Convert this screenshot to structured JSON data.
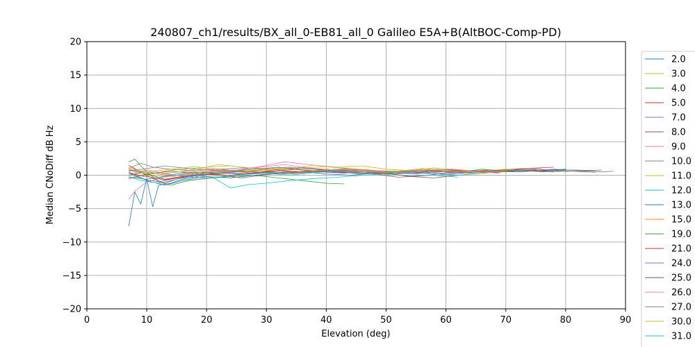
{
  "chart_data": {
    "type": "line",
    "title": "240807_ch1/results/BX_all_0-EB81_all_0 Galileo E5A+B(AltBOC-Comp-PD)",
    "xlabel": "Elevation (deg)",
    "ylabel": "Median CNoDiff dB Hz",
    "xlim": [
      0,
      90
    ],
    "ylim": [
      -20,
      20
    ],
    "xticks": [
      "0",
      "10",
      "20",
      "30",
      "40",
      "50",
      "60",
      "70",
      "80",
      "90"
    ],
    "yticks": [
      "20",
      "15",
      "10",
      "5",
      "0",
      "−5",
      "−10",
      "−15",
      "−20"
    ],
    "grid": true,
    "legend_position": "right",
    "series": [
      {
        "name": "2.0",
        "color": "#1f77b4",
        "x": [
          7,
          8,
          9,
          10,
          11,
          12,
          14,
          16,
          18,
          20,
          23,
          26,
          30,
          34,
          38,
          42,
          46,
          50,
          55,
          60,
          65,
          70,
          75,
          80,
          85
        ],
        "y": [
          -7.6,
          -2.5,
          -4.3,
          -0.5,
          -4.7,
          -1.5,
          -1.2,
          -0.6,
          -0.3,
          0.1,
          0.3,
          0.2,
          0.4,
          0.5,
          0.6,
          0.4,
          0.3,
          0.5,
          0.4,
          0.6,
          0.5,
          0.7,
          0.6,
          0.8,
          0.7
        ]
      },
      {
        "name": "3.0",
        "color": "#bcbd22",
        "x": [
          7,
          9,
          11,
          13,
          16,
          20,
          24,
          28,
          32,
          36,
          40,
          44,
          48,
          52,
          56,
          60,
          64,
          68,
          72,
          76
        ],
        "y": [
          -0.5,
          -0.3,
          0.2,
          0.6,
          0.9,
          1.2,
          1.4,
          1.0,
          0.8,
          1.1,
          1.3,
          1.0,
          0.7,
          0.6,
          1.0,
          0.8,
          0.5,
          0.7,
          0.9,
          0.6
        ]
      },
      {
        "name": "4.0",
        "color": "#2ca02c",
        "x": [
          7,
          8,
          10,
          12,
          14,
          17,
          20,
          24,
          28,
          32,
          36,
          40,
          43
        ],
        "y": [
          2.0,
          2.4,
          0.5,
          -1.0,
          -1.5,
          -0.8,
          -0.5,
          -0.2,
          0.0,
          -0.4,
          -0.8,
          -1.2,
          -1.3
        ]
      },
      {
        "name": "5.0",
        "color": "#d62728",
        "x": [
          7,
          9,
          11,
          13,
          15,
          18,
          21,
          25,
          29,
          33,
          37,
          41,
          45,
          49,
          53,
          57,
          61,
          65,
          69,
          73,
          78
        ],
        "y": [
          1.5,
          0.5,
          -0.5,
          -1.2,
          -0.6,
          0.0,
          0.3,
          0.5,
          0.8,
          1.0,
          0.7,
          0.5,
          0.6,
          0.3,
          0.4,
          0.7,
          0.9,
          0.6,
          0.8,
          1.0,
          1.2
        ]
      },
      {
        "name": "7.0",
        "color": "#9467bd",
        "x": [
          7,
          9,
          12,
          15,
          19,
          23,
          27,
          31,
          35,
          39,
          43,
          47,
          51,
          55,
          59,
          63,
          67,
          71
        ],
        "y": [
          0.3,
          -0.5,
          -1.0,
          -0.4,
          0.1,
          0.4,
          0.2,
          0.6,
          0.9,
          0.5,
          0.3,
          0.6,
          0.4,
          0.2,
          0.5,
          0.7,
          0.4,
          0.6
        ]
      },
      {
        "name": "8.0",
        "color": "#8c564b",
        "x": [
          7,
          10,
          13,
          16,
          20,
          24,
          28,
          32,
          36,
          40,
          44,
          48,
          52,
          56,
          60,
          64,
          68,
          72,
          76
        ],
        "y": [
          0.8,
          0.2,
          -0.6,
          -0.2,
          0.4,
          0.6,
          0.3,
          0.9,
          1.1,
          0.8,
          0.5,
          0.2,
          -0.3,
          -0.1,
          0.3,
          0.5,
          0.7,
          0.9,
          1.1
        ]
      },
      {
        "name": "9.0",
        "color": "#e377c2",
        "x": [
          7,
          8,
          10,
          13,
          17,
          21,
          25,
          29,
          33,
          37,
          41,
          45,
          49,
          53,
          57,
          61,
          65
        ],
        "y": [
          -3.6,
          -2.4,
          -1.0,
          -0.3,
          0.3,
          0.6,
          0.8,
          1.3,
          2.0,
          1.6,
          1.2,
          0.9,
          0.5,
          0.4,
          0.6,
          0.8,
          0.5
        ]
      },
      {
        "name": "10.0",
        "color": "#7f7f7f",
        "x": [
          7,
          9,
          11,
          14,
          18,
          22,
          26,
          30,
          34,
          38,
          42,
          46,
          50,
          54,
          58,
          62,
          66,
          70,
          74,
          78,
          82,
          86,
          88
        ],
        "y": [
          1.0,
          1.8,
          1.2,
          0.9,
          0.7,
          0.9,
          1.1,
          1.0,
          1.2,
          0.9,
          0.6,
          0.8,
          0.4,
          0.6,
          0.9,
          0.7,
          0.5,
          0.8,
          0.6,
          0.9,
          0.7,
          0.5,
          0.6
        ]
      },
      {
        "name": "11.0",
        "color": "#bcbd22",
        "x": [
          7,
          10,
          14,
          18,
          22,
          26,
          30,
          34,
          38,
          42,
          46,
          50,
          54,
          58,
          62,
          66,
          70,
          74,
          78,
          82,
          85
        ],
        "y": [
          0.0,
          0.5,
          0.9,
          1.3,
          0.8,
          0.5,
          0.7,
          1.0,
          1.5,
          1.2,
          1.4,
          0.9,
          0.7,
          1.1,
          0.8,
          0.6,
          0.9,
          0.7,
          0.5,
          0.6,
          0.4
        ]
      },
      {
        "name": "12.0",
        "color": "#17becf",
        "x": [
          7,
          10,
          13,
          17,
          21,
          24,
          27,
          30,
          34,
          38,
          42,
          46,
          50,
          54,
          58,
          62
        ],
        "y": [
          -0.3,
          -0.6,
          -0.2,
          0.2,
          -0.3,
          -1.9,
          -1.4,
          -1.2,
          -0.8,
          -0.5,
          -0.3,
          0.0,
          0.2,
          -0.1,
          0.0,
          -0.3
        ]
      },
      {
        "name": "13.0",
        "color": "#1f77b4",
        "x": [
          7,
          10,
          13,
          16,
          20,
          24,
          28,
          32,
          36,
          40,
          44,
          48,
          52,
          56,
          60,
          64,
          68,
          72,
          76,
          80
        ],
        "y": [
          0.5,
          -0.8,
          -1.5,
          -0.8,
          -0.2,
          -0.4,
          0.0,
          0.3,
          0.5,
          0.2,
          0.0,
          0.3,
          0.5,
          0.3,
          0.1,
          0.4,
          0.6,
          0.5,
          0.7,
          0.9
        ]
      },
      {
        "name": "15.0",
        "color": "#ff7f0e",
        "x": [
          7,
          9,
          12,
          15,
          19,
          23,
          27,
          31,
          35,
          39,
          43,
          47,
          51,
          55,
          59,
          63,
          67
        ],
        "y": [
          1.2,
          0.6,
          0.2,
          -0.3,
          0.5,
          0.8,
          0.6,
          0.9,
          0.4,
          0.7,
          1.0,
          0.8,
          0.5,
          0.3,
          0.6,
          0.4,
          0.7
        ]
      },
      {
        "name": "19.0",
        "color": "#2ca02c",
        "x": [
          7,
          9,
          12,
          15,
          18,
          22,
          26,
          30,
          34,
          38,
          42,
          46,
          50,
          54,
          58,
          62,
          66,
          70,
          74,
          78
        ],
        "y": [
          0.0,
          0.4,
          -0.3,
          0.2,
          0.5,
          0.3,
          0.6,
          0.4,
          0.2,
          0.5,
          0.8,
          0.6,
          0.3,
          0.5,
          0.7,
          0.4,
          0.9,
          0.6,
          0.8,
          0.5
        ]
      },
      {
        "name": "21.0",
        "color": "#d62728",
        "x": [
          7,
          10,
          13,
          16,
          20,
          24,
          28,
          32,
          36,
          40,
          44,
          48,
          52,
          56,
          60,
          64,
          68,
          72,
          76
        ],
        "y": [
          0.3,
          -0.2,
          -0.7,
          -0.3,
          0.2,
          0.0,
          0.4,
          0.7,
          0.5,
          0.9,
          0.6,
          0.4,
          0.2,
          0.5,
          0.8,
          0.6,
          0.4,
          0.7,
          0.9
        ]
      },
      {
        "name": "24.0",
        "color": "#9467bd",
        "x": [
          7,
          11,
          15,
          19,
          23,
          27,
          31,
          35,
          39,
          43,
          47,
          51,
          55,
          59,
          63,
          67,
          71,
          75,
          79,
          83,
          86
        ],
        "y": [
          0.8,
          0.4,
          0.0,
          -0.4,
          -0.2,
          0.2,
          0.5,
          0.3,
          0.6,
          0.9,
          0.7,
          0.4,
          0.6,
          0.3,
          0.5,
          0.8,
          0.6,
          0.9,
          0.7,
          0.5,
          0.8
        ]
      },
      {
        "name": "25.0",
        "color": "#8c564b",
        "x": [
          7,
          10,
          14,
          18,
          22,
          26,
          30,
          34,
          38,
          42,
          46,
          50,
          54,
          58,
          62,
          66,
          70,
          74,
          78
        ],
        "y": [
          -0.5,
          0.2,
          0.6,
          0.3,
          0.0,
          -0.4,
          0.1,
          0.4,
          0.7,
          0.5,
          0.2,
          0.3,
          -0.2,
          -0.4,
          0.0,
          0.3,
          0.6,
          0.8,
          0.5
        ]
      },
      {
        "name": "26.0",
        "color": "#e377c2",
        "x": [
          7,
          10,
          13,
          17,
          21,
          25,
          29,
          33,
          37,
          41,
          45,
          49,
          53,
          57,
          61,
          65,
          69
        ],
        "y": [
          0.2,
          0.8,
          0.3,
          0.6,
          1.0,
          0.7,
          1.2,
          1.6,
          1.1,
          0.8,
          0.5,
          0.7,
          0.4,
          0.6,
          0.9,
          0.5,
          0.3
        ]
      },
      {
        "name": "27.0",
        "color": "#7f7f7f",
        "x": [
          7,
          10,
          13,
          16,
          20,
          24,
          28,
          32,
          36,
          40,
          44,
          48,
          52,
          56,
          60,
          64,
          68,
          72,
          76,
          80
        ],
        "y": [
          0.6,
          1.0,
          1.4,
          1.1,
          0.8,
          0.6,
          0.9,
          1.2,
          0.8,
          0.5,
          0.7,
          0.4,
          0.6,
          0.8,
          0.5,
          0.3,
          0.6,
          0.8,
          0.5,
          0.7
        ]
      },
      {
        "name": "30.0",
        "color": "#bcbd22",
        "x": [
          7,
          10,
          13,
          16,
          19,
          22,
          26,
          30,
          34,
          38,
          42,
          46,
          50,
          54,
          58,
          62,
          66,
          70
        ],
        "y": [
          0.9,
          0.5,
          0.2,
          0.6,
          1.0,
          1.6,
          1.2,
          0.8,
          1.1,
          0.7,
          0.9,
          0.6,
          0.4,
          0.7,
          0.9,
          0.6,
          0.4,
          0.6
        ]
      },
      {
        "name": "31.0",
        "color": "#17becf",
        "x": [
          7,
          9,
          12,
          15,
          18,
          22,
          26,
          30,
          34,
          38,
          42,
          46,
          50,
          54,
          58,
          62,
          66
        ],
        "y": [
          -0.2,
          -0.8,
          -1.2,
          -0.6,
          -0.1,
          -0.3,
          0.1,
          0.3,
          0.0,
          0.4,
          0.6,
          0.3,
          0.1,
          0.4,
          0.2,
          0.0,
          0.3
        ]
      }
    ]
  }
}
